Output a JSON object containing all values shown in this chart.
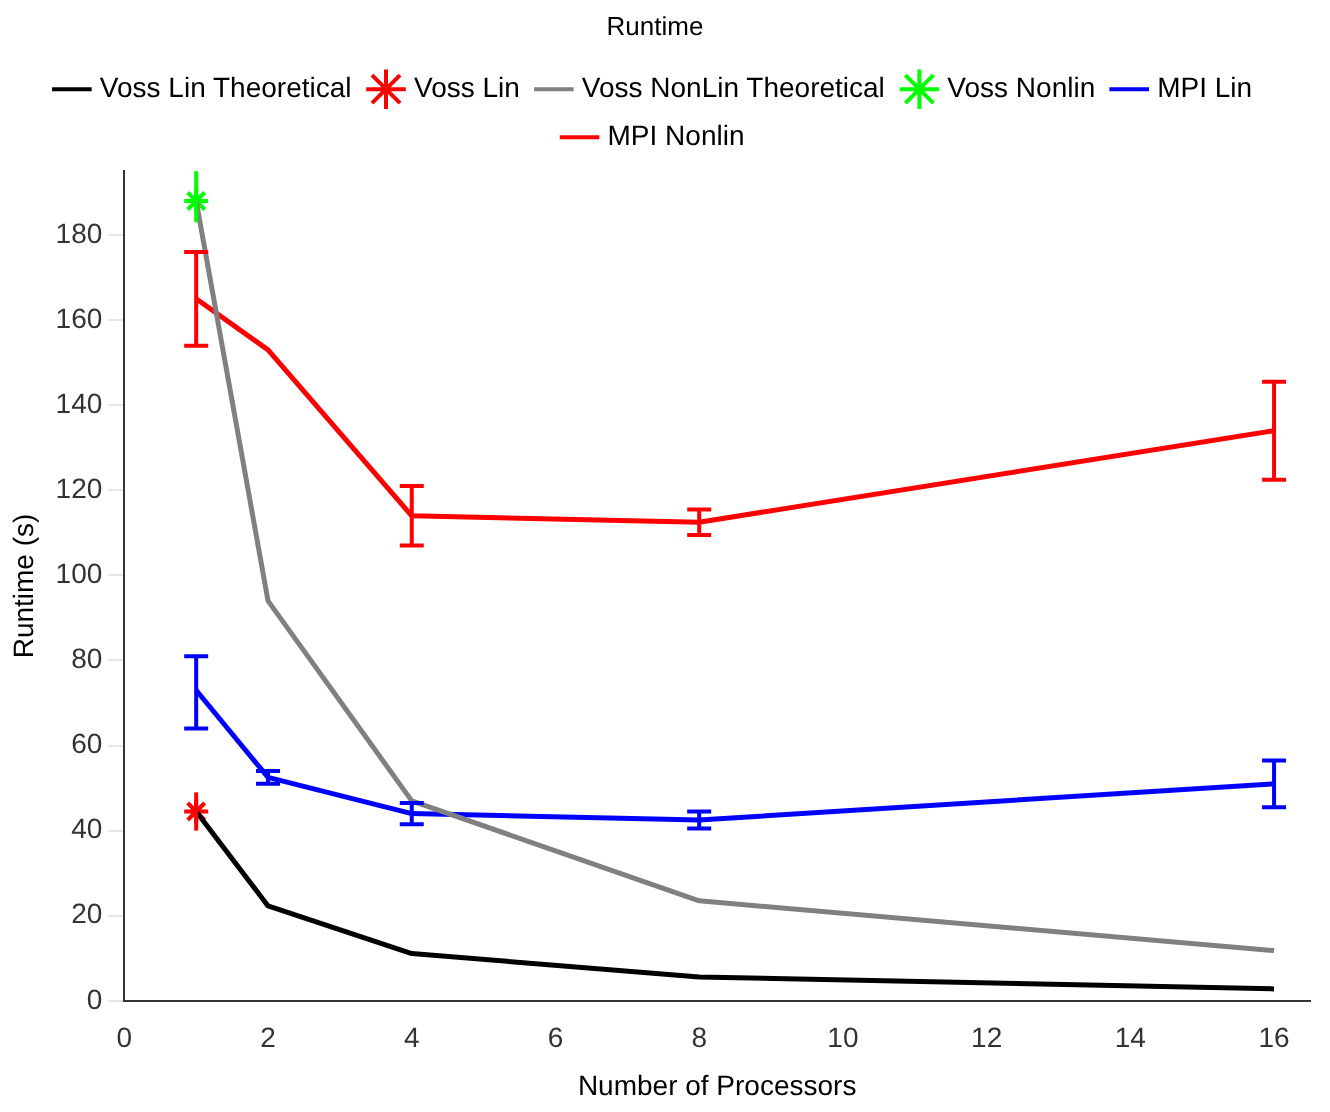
{
  "chart_data": {
    "type": "line",
    "title": "Runtime",
    "xlabel": "Number of Processors",
    "ylabel": "Runtime (s)",
    "xlim": [
      0,
      16.5
    ],
    "xticks": [
      0,
      2,
      4,
      6,
      8,
      10,
      12,
      14,
      16
    ],
    "ylim": [
      0,
      195
    ],
    "yticks": [
      0,
      20,
      40,
      60,
      80,
      100,
      120,
      140,
      160,
      180
    ],
    "grid": false,
    "legend": "top",
    "x": [
      1,
      2,
      4,
      8,
      16
    ],
    "series": [
      {
        "name": "Voss Lin Theoretical",
        "color": "#000000",
        "marker": "none",
        "values": [
          44.5,
          22.3,
          11.1,
          5.6,
          2.8
        ]
      },
      {
        "name": "Voss Lin",
        "color": "#ff0000",
        "type": "scatter",
        "marker": "cross",
        "x": [
          1
        ],
        "values": [
          44.5
        ],
        "errors": [
          [
            40,
            49
          ]
        ]
      },
      {
        "name": "Voss NonLin Theoretical",
        "color": "#808080",
        "marker": "none",
        "values": [
          188,
          94,
          47,
          23.5,
          11.8
        ]
      },
      {
        "name": "Voss Nonlin",
        "color": "#00ff00",
        "type": "scatter",
        "marker": "cross",
        "x": [
          1
        ],
        "values": [
          188
        ],
        "errors": [
          [
            183,
            195
          ]
        ]
      },
      {
        "name": "MPI Lin",
        "color": "#0000ff",
        "marker": "none",
        "values": [
          73,
          52.5,
          44,
          42.5,
          51
        ],
        "errors": [
          [
            64,
            81
          ],
          1.5,
          2.5,
          2,
          [
            45.5,
            56.5
          ]
        ]
      },
      {
        "name": "MPI Nonlin",
        "color": "#ff0000",
        "marker": "none",
        "values": [
          165,
          153,
          114,
          112.5,
          134
        ],
        "errors": [
          [
            154,
            176
          ],
          null,
          [
            107,
            121
          ],
          [
            109.5,
            115.5
          ],
          [
            122.5,
            145.5
          ]
        ]
      }
    ]
  }
}
